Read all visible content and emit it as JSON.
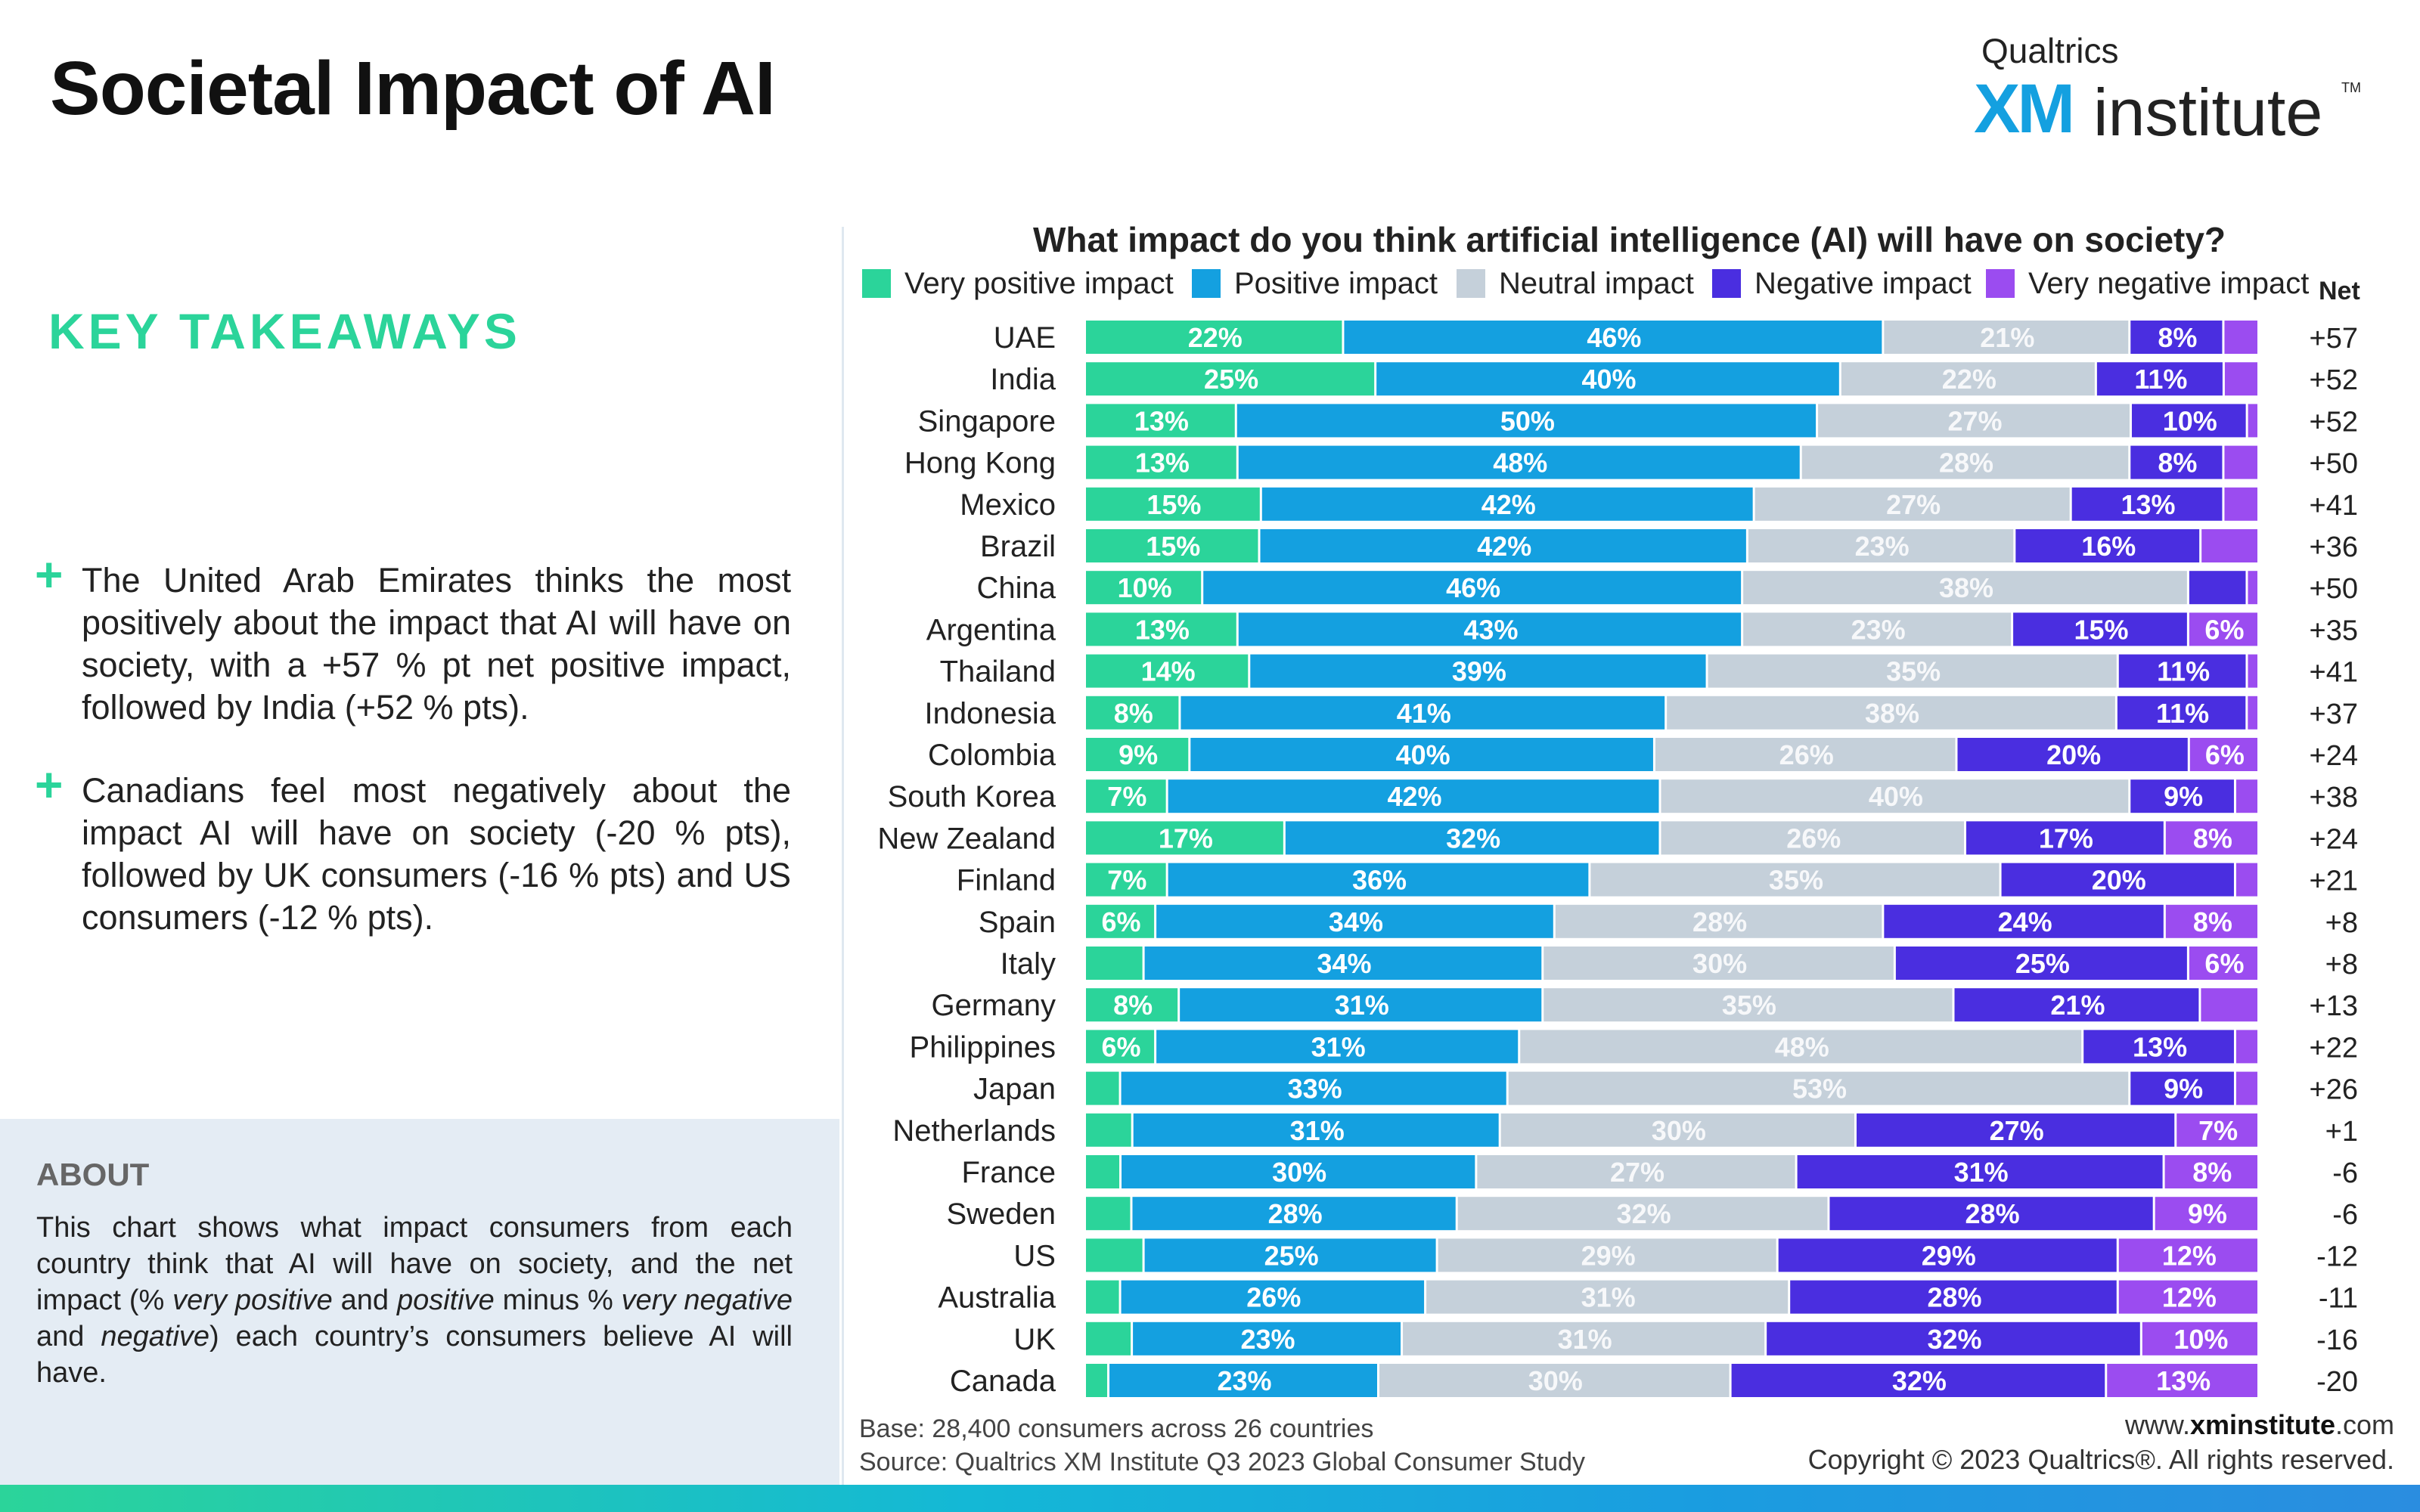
{
  "page": {
    "title": "Societal Impact of AI",
    "logo_company": "Qualtrics",
    "logo_xm": "XM",
    "logo_institute": "institute",
    "logo_tm": "TM"
  },
  "takeaways": {
    "heading": "KEY TAKEAWAYS",
    "items": [
      "The United Arab Emirates thinks the most positively about the impact that AI will have on society, with a +57 % pt net positive impact, followed by India (+52 % pts).",
      "Canadians feel most negatively about the impact AI will have on society (-20 % pts), followed by UK consumers (-16 % pts) and US consumers (-12 % pts)."
    ]
  },
  "about": {
    "heading": "ABOUT",
    "text": "This chart shows what impact consumers from each country think that AI will have on society, and the net impact (% very positive and positive minus % very negative and negative) each country's consumers believe AI will have."
  },
  "footer": {
    "base": "Base: 28,400 consumers across 26 countries",
    "source": "Source: Qualtrics XM Institute Q3 2023 Global Consumer Study",
    "website_prefix": "www.",
    "website_bold": "xminstitute",
    "website_suffix": ".com",
    "copyright": "Copyright © 2023 Qualtrics®. All rights reserved."
  },
  "chart_data": {
    "type": "bar",
    "orientation": "horizontal",
    "stacked": true,
    "title": "What impact do you think artificial intelligence (AI) will have on society?",
    "net_label": "Net",
    "legend_position": "top",
    "categories": [
      "UAE",
      "India",
      "Singapore",
      "Hong Kong",
      "Mexico",
      "Brazil",
      "China",
      "Argentina",
      "Thailand",
      "Indonesia",
      "Colombia",
      "South Korea",
      "New Zealand",
      "Finland",
      "Spain",
      "Italy",
      "Germany",
      "Philippines",
      "Japan",
      "Netherlands",
      "France",
      "Sweden",
      "US",
      "Australia",
      "UK",
      "Canada"
    ],
    "series": [
      {
        "name": "Very positive impact",
        "color": "#2bd49a",
        "values": [
          22,
          25,
          13,
          13,
          15,
          15,
          10,
          13,
          14,
          8,
          9,
          7,
          17,
          7,
          6,
          5,
          8,
          6,
          3,
          4,
          3,
          4,
          5,
          3,
          4,
          2
        ]
      },
      {
        "name": "Positive impact",
        "color": "#14a0e0",
        "values": [
          46,
          40,
          50,
          48,
          42,
          42,
          46,
          43,
          39,
          41,
          40,
          42,
          32,
          36,
          34,
          34,
          31,
          31,
          33,
          31,
          30,
          28,
          25,
          26,
          23,
          23
        ]
      },
      {
        "name": "Neutral impact",
        "color": "#c5d0da",
        "values": [
          21,
          22,
          27,
          28,
          27,
          23,
          38,
          23,
          35,
          38,
          26,
          40,
          26,
          35,
          28,
          30,
          35,
          48,
          53,
          30,
          27,
          32,
          29,
          31,
          31,
          30
        ]
      },
      {
        "name": "Negative impact",
        "color": "#4a2ee0",
        "values": [
          8,
          11,
          10,
          8,
          13,
          16,
          5,
          15,
          11,
          11,
          20,
          9,
          17,
          20,
          24,
          25,
          21,
          13,
          9,
          27,
          31,
          28,
          29,
          28,
          32,
          32
        ]
      },
      {
        "name": "Very negative impact",
        "color": "#9b4cf0",
        "values": [
          3,
          3,
          1,
          3,
          3,
          5,
          1,
          6,
          1,
          1,
          6,
          2,
          8,
          2,
          8,
          6,
          5,
          2,
          2,
          7,
          8,
          9,
          12,
          12,
          10,
          13
        ]
      }
    ],
    "net": [
      "+57",
      "+52",
      "+52",
      "+50",
      "+41",
      "+36",
      "+50",
      "+35",
      "+41",
      "+37",
      "+24",
      "+38",
      "+24",
      "+21",
      "+8",
      "+8",
      "+13",
      "+22",
      "+26",
      "+1",
      "-6",
      "-6",
      "-12",
      "-11",
      "-16",
      "-20"
    ],
    "label_threshold": 6,
    "xlim": [
      0,
      100
    ]
  }
}
